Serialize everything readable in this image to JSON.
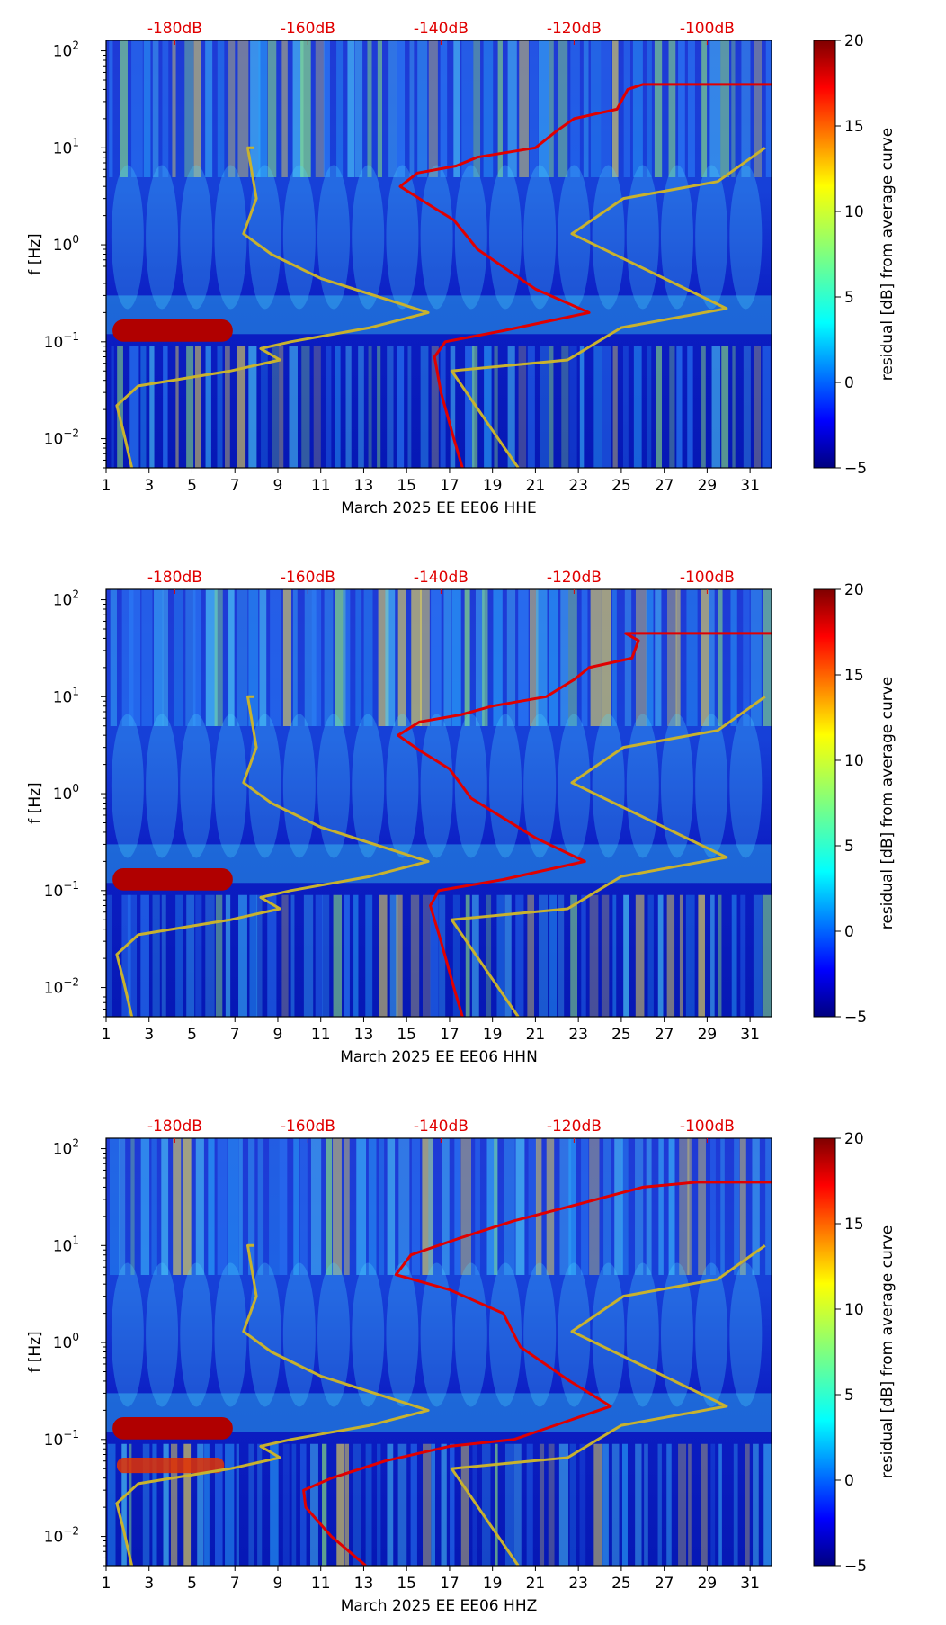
{
  "colorbar": {
    "label": "residual [dB] from average curve",
    "min": -5,
    "max": 20,
    "ticks": [
      -5,
      0,
      5,
      10,
      15,
      20
    ],
    "colors": [
      "#00007f",
      "#0000ff",
      "#007fff",
      "#00ffff",
      "#7fff7f",
      "#ffff00",
      "#ff7f00",
      "#ff0000",
      "#7f0000"
    ]
  },
  "colors": {
    "db_text": "#e00000",
    "median_line": "#e00000",
    "noise_model": "#c8b22e"
  },
  "chart_data": [
    {
      "type": "heatmap",
      "title": "",
      "xlabel": "March 2025 EE EE06  HHE",
      "ylabel": "f [Hz]",
      "xlim": [
        1,
        32
      ],
      "ylim": [
        0.005,
        128
      ],
      "yscale": "log",
      "x_ticks": [
        "1",
        "3",
        "5",
        "7",
        "9",
        "11",
        "13",
        "15",
        "17",
        "19",
        "21",
        "23",
        "25",
        "27",
        "29",
        "31"
      ],
      "y_ticks": [
        {
          "v": 0.01,
          "b": "10",
          "e": "−2"
        },
        {
          "v": 0.1,
          "b": "10",
          "e": "−1"
        },
        {
          "v": 1,
          "b": "10",
          "e": "0"
        },
        {
          "v": 10,
          "b": "10",
          "e": "1"
        },
        {
          "v": 100,
          "b": "10",
          "e": "2"
        }
      ],
      "db_scale": [
        {
          "label": "-180dB",
          "x": 4.2
        },
        {
          "label": "-160dB",
          "x": 10.4
        },
        {
          "label": "-140dB",
          "x": 16.6
        },
        {
          "label": "-120dB",
          "x": 22.8
        },
        {
          "label": "-100dB",
          "x": 29
        }
      ],
      "red_curve": [
        [
          17.6,
          0.005
        ],
        [
          17.2,
          0.01
        ],
        [
          16.6,
          0.03
        ],
        [
          16.3,
          0.07
        ],
        [
          16.8,
          0.1
        ],
        [
          19.5,
          0.13
        ],
        [
          23.5,
          0.2
        ],
        [
          21,
          0.35
        ],
        [
          18.3,
          0.9
        ],
        [
          17.2,
          1.8
        ],
        [
          15.8,
          2.8
        ],
        [
          14.7,
          4
        ],
        [
          15.5,
          5.5
        ],
        [
          17.3,
          6.5
        ],
        [
          18.3,
          8
        ],
        [
          21,
          10
        ],
        [
          22,
          15
        ],
        [
          22.8,
          20
        ],
        [
          24.8,
          25
        ],
        [
          25.3,
          40
        ],
        [
          26,
          45
        ],
        [
          32,
          45
        ]
      ],
      "noise_model": [
        [
          2.2,
          0.005
        ],
        [
          1.8,
          0.012
        ],
        [
          1.5,
          0.022
        ],
        [
          2.5,
          0.035
        ],
        [
          6.8,
          0.05
        ],
        [
          9.1,
          0.065
        ],
        [
          8.2,
          0.085
        ],
        [
          9.6,
          0.1
        ],
        [
          13.3,
          0.14
        ],
        [
          16,
          0.2
        ],
        [
          11,
          0.45
        ],
        [
          8.7,
          0.8
        ],
        [
          7.4,
          1.3
        ],
        [
          8,
          3
        ],
        [
          7.6,
          10
        ],
        [
          7.9,
          10
        ],
        [
          20.2,
          0.005
        ],
        [
          17.1,
          0.05
        ],
        [
          22.5,
          0.065
        ],
        [
          25,
          0.14
        ],
        [
          29.9,
          0.22
        ],
        [
          22.7,
          1.3
        ],
        [
          25.1,
          3
        ],
        [
          29.5,
          4.5
        ],
        [
          31.7,
          10
        ]
      ]
    },
    {
      "type": "heatmap",
      "title": "",
      "xlabel": "March 2025 EE EE06  HHN",
      "ylabel": "f [Hz]",
      "xlim": [
        1,
        32
      ],
      "ylim": [
        0.005,
        128
      ],
      "yscale": "log",
      "x_ticks": [
        "1",
        "3",
        "5",
        "7",
        "9",
        "11",
        "13",
        "15",
        "17",
        "19",
        "21",
        "23",
        "25",
        "27",
        "29",
        "31"
      ],
      "y_ticks": [
        {
          "v": 0.01,
          "b": "10",
          "e": "−2"
        },
        {
          "v": 0.1,
          "b": "10",
          "e": "−1"
        },
        {
          "v": 1,
          "b": "10",
          "e": "0"
        },
        {
          "v": 10,
          "b": "10",
          "e": "1"
        },
        {
          "v": 100,
          "b": "10",
          "e": "2"
        }
      ],
      "db_scale": [
        {
          "label": "-180dB",
          "x": 4.2
        },
        {
          "label": "-160dB",
          "x": 10.4
        },
        {
          "label": "-140dB",
          "x": 16.6
        },
        {
          "label": "-120dB",
          "x": 22.8
        },
        {
          "label": "-100dB",
          "x": 29
        }
      ],
      "red_curve": [
        [
          17.6,
          0.005
        ],
        [
          17.2,
          0.01
        ],
        [
          16.6,
          0.03
        ],
        [
          16.1,
          0.07
        ],
        [
          16.5,
          0.1
        ],
        [
          19.5,
          0.13
        ],
        [
          23.3,
          0.2
        ],
        [
          21,
          0.35
        ],
        [
          18,
          0.9
        ],
        [
          17,
          1.8
        ],
        [
          15.6,
          2.8
        ],
        [
          14.6,
          4
        ],
        [
          15.6,
          5.5
        ],
        [
          17.5,
          6.5
        ],
        [
          19,
          8
        ],
        [
          21.5,
          10
        ],
        [
          22.8,
          15
        ],
        [
          23.5,
          20
        ],
        [
          25.5,
          25
        ],
        [
          25.8,
          38
        ],
        [
          25.2,
          45
        ],
        [
          32,
          45
        ]
      ],
      "noise_model": [
        [
          2.2,
          0.005
        ],
        [
          1.8,
          0.012
        ],
        [
          1.5,
          0.022
        ],
        [
          2.5,
          0.035
        ],
        [
          6.8,
          0.05
        ],
        [
          9.1,
          0.065
        ],
        [
          8.2,
          0.085
        ],
        [
          9.6,
          0.1
        ],
        [
          13.3,
          0.14
        ],
        [
          16,
          0.2
        ],
        [
          11,
          0.45
        ],
        [
          8.7,
          0.8
        ],
        [
          7.4,
          1.3
        ],
        [
          8,
          3
        ],
        [
          7.6,
          10
        ],
        [
          7.9,
          10
        ],
        [
          20.2,
          0.005
        ],
        [
          17.1,
          0.05
        ],
        [
          22.5,
          0.065
        ],
        [
          25,
          0.14
        ],
        [
          29.9,
          0.22
        ],
        [
          22.7,
          1.3
        ],
        [
          25.1,
          3
        ],
        [
          29.5,
          4.5
        ],
        [
          31.7,
          10
        ]
      ]
    },
    {
      "type": "heatmap",
      "title": "",
      "xlabel": "March 2025 EE EE06  HHZ",
      "ylabel": "f [Hz]",
      "xlim": [
        1,
        32
      ],
      "ylim": [
        0.005,
        128
      ],
      "yscale": "log",
      "x_ticks": [
        "1",
        "3",
        "5",
        "7",
        "9",
        "11",
        "13",
        "15",
        "17",
        "19",
        "21",
        "23",
        "25",
        "27",
        "29",
        "31"
      ],
      "y_ticks": [
        {
          "v": 0.01,
          "b": "10",
          "e": "−2"
        },
        {
          "v": 0.1,
          "b": "10",
          "e": "−1"
        },
        {
          "v": 1,
          "b": "10",
          "e": "0"
        },
        {
          "v": 10,
          "b": "10",
          "e": "1"
        },
        {
          "v": 100,
          "b": "10",
          "e": "2"
        }
      ],
      "db_scale": [
        {
          "label": "-180dB",
          "x": 4.2
        },
        {
          "label": "-160dB",
          "x": 10.4
        },
        {
          "label": "-140dB",
          "x": 16.6
        },
        {
          "label": "-120dB",
          "x": 22.8
        },
        {
          "label": "-100dB",
          "x": 29
        }
      ],
      "red_curve": [
        [
          13.1,
          0.005
        ],
        [
          11.5,
          0.01
        ],
        [
          10.3,
          0.02
        ],
        [
          10.2,
          0.03
        ],
        [
          11.5,
          0.04
        ],
        [
          14,
          0.06
        ],
        [
          17,
          0.085
        ],
        [
          20,
          0.1
        ],
        [
          21.5,
          0.13
        ],
        [
          24.5,
          0.22
        ],
        [
          22.6,
          0.4
        ],
        [
          20.3,
          0.9
        ],
        [
          19.5,
          2
        ],
        [
          17,
          3.5
        ],
        [
          14.5,
          5
        ],
        [
          15.2,
          8
        ],
        [
          17.5,
          12
        ],
        [
          20,
          18
        ],
        [
          22.5,
          25
        ],
        [
          26,
          40
        ],
        [
          28.5,
          45
        ],
        [
          32,
          45
        ]
      ],
      "noise_model": [
        [
          2.2,
          0.005
        ],
        [
          1.8,
          0.012
        ],
        [
          1.5,
          0.022
        ],
        [
          2.5,
          0.035
        ],
        [
          6.8,
          0.05
        ],
        [
          9.1,
          0.065
        ],
        [
          8.2,
          0.085
        ],
        [
          9.6,
          0.1
        ],
        [
          13.3,
          0.14
        ],
        [
          16,
          0.2
        ],
        [
          11,
          0.45
        ],
        [
          8.7,
          0.8
        ],
        [
          7.4,
          1.3
        ],
        [
          8,
          3
        ],
        [
          7.6,
          10
        ],
        [
          7.9,
          10
        ],
        [
          20.2,
          0.005
        ],
        [
          17.1,
          0.05
        ],
        [
          22.5,
          0.065
        ],
        [
          25,
          0.14
        ],
        [
          29.9,
          0.22
        ],
        [
          22.7,
          1.3
        ],
        [
          25.1,
          3
        ],
        [
          29.5,
          4.5
        ],
        [
          31.7,
          10
        ]
      ]
    }
  ]
}
